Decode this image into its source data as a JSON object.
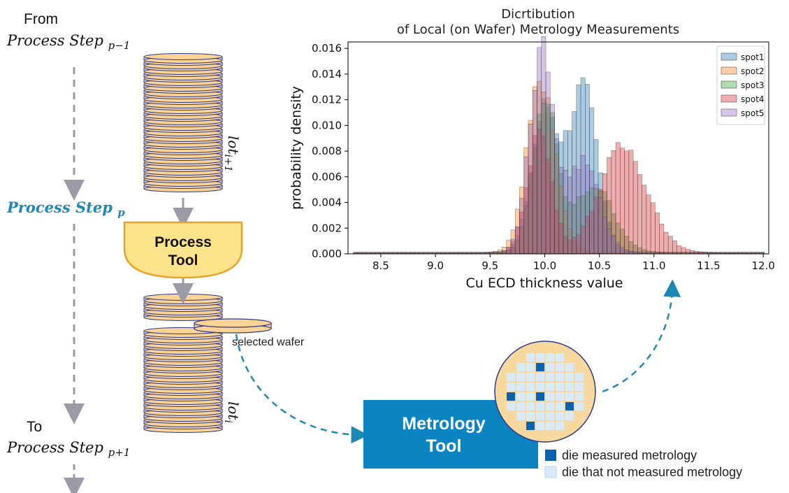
{
  "flow": {
    "from_label": "From",
    "prev_step": "Process Step",
    "prev_sub": "p−1",
    "current_step": "Process Step",
    "current_sub": "p",
    "to_label": "To",
    "next_step": "Process Step",
    "next_sub": "p+1",
    "lot_next_base": "lot",
    "lot_next_sub": "i+1",
    "lot_base": "lot",
    "lot_sub": "i"
  },
  "process_tool": {
    "line1": "Process",
    "line2": "Tool"
  },
  "selected_wafer_label": "selected wafer",
  "metrology_tool": {
    "line1": "Metrology",
    "line2": "Tool"
  },
  "wafer_map": {
    "legend_measured": "die measured metrology",
    "legend_not_measured": "die that not measured metrology",
    "colors": {
      "measured": "#0b63b0",
      "not_measured": "#d9ebfa",
      "edge": "#f7d9a0"
    }
  },
  "colors": {
    "accent_blue": "#1f87b6",
    "metrology_box": "#0a85c1",
    "wafer_fill": "#fbd495",
    "wafer_stroke": "#2e3a8c",
    "process_tool_fill": "#fde38a",
    "process_tool_stroke": "#e8a32b"
  },
  "chart_data": {
    "type": "histogram",
    "title": "Dicrtibution\nof Local (on Wafer) Metrology Measurements",
    "title_line1": "Dicrtibution",
    "title_line2": "of Local (on Wafer) Metrology Measurements",
    "xlabel": "Cu ECD thickness value",
    "ylabel": "probability density",
    "xlim": [
      8.2,
      12.05
    ],
    "ylim": [
      0,
      0.0165
    ],
    "xticks": [
      "8.5",
      "9.0",
      "9.5",
      "10.0",
      "10.5",
      "11.0",
      "11.5",
      "12.0"
    ],
    "yticks": [
      "0.000",
      "0.002",
      "0.004",
      "0.006",
      "0.008",
      "0.010",
      "0.012",
      "0.014",
      "0.016"
    ],
    "legend_position": "top-right",
    "grid": false,
    "series": [
      {
        "name": "spot1",
        "color": "#1f77b4",
        "peaks": [
          {
            "mean": 10.0,
            "sd": 0.12,
            "height": 0.0112
          },
          {
            "mean": 10.35,
            "sd": 0.13,
            "height": 0.0128
          }
        ]
      },
      {
        "name": "spot2",
        "color": "#ff7f0e",
        "peaks": [
          {
            "mean": 9.97,
            "sd": 0.13,
            "height": 0.0136
          }
        ]
      },
      {
        "name": "spot3",
        "color": "#2ca02c",
        "peaks": [
          {
            "mean": 10.0,
            "sd": 0.11,
            "height": 0.0118
          },
          {
            "mean": 10.45,
            "sd": 0.18,
            "height": 0.0052
          }
        ]
      },
      {
        "name": "spot4",
        "color": "#d62728",
        "peaks": [
          {
            "mean": 9.95,
            "sd": 0.11,
            "height": 0.0095
          },
          {
            "mean": 10.72,
            "sd": 0.22,
            "height": 0.0082
          }
        ]
      },
      {
        "name": "spot5",
        "color": "#9467bd",
        "peaks": [
          {
            "mean": 9.97,
            "sd": 0.11,
            "height": 0.0157
          },
          {
            "mean": 10.35,
            "sd": 0.15,
            "height": 0.007
          }
        ]
      }
    ]
  }
}
